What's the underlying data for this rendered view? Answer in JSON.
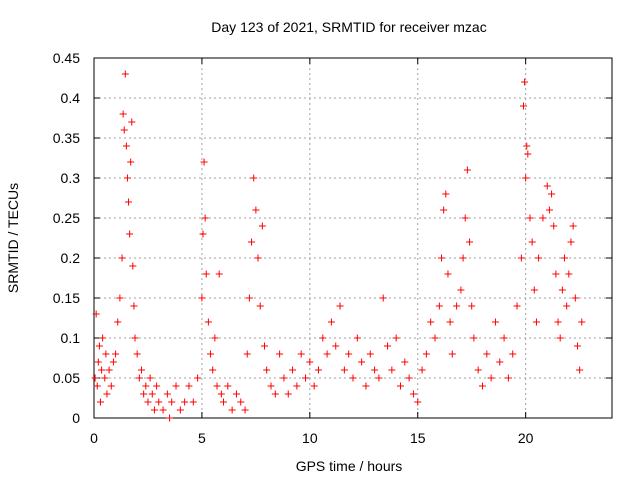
{
  "chart_data": {
    "type": "scatter",
    "title": "Day 123 of 2021, SRMTID for receiver mzac",
    "xlabel": "GPS time / hours",
    "ylabel": "SRMTID / TECUs",
    "xlim": [
      0,
      24
    ],
    "ylim": [
      0,
      0.45
    ],
    "xticks": [
      0,
      5,
      10,
      15,
      20
    ],
    "xtick_labels": [
      "0",
      "5",
      "10",
      "15",
      "20"
    ],
    "yticks": [
      0,
      0.05,
      0.1,
      0.15,
      0.2,
      0.25,
      0.3,
      0.35,
      0.4,
      0.45
    ],
    "ytick_labels": [
      "0",
      "0.05",
      "0.1",
      "0.15",
      "0.2",
      "0.25",
      "0.3",
      "0.35",
      "0.4",
      "0.45"
    ],
    "grid": true,
    "marker": "+",
    "marker_color": "#ff0000",
    "data_x_range": [
      0,
      22.6
    ],
    "series": [
      {
        "name": "SRMTID",
        "points": [
          [
            0.05,
            0.05
          ],
          [
            0.1,
            0.13
          ],
          [
            0.15,
            0.04
          ],
          [
            0.2,
            0.07
          ],
          [
            0.25,
            0.09
          ],
          [
            0.3,
            0.02
          ],
          [
            0.35,
            0.06
          ],
          [
            0.4,
            0.1
          ],
          [
            0.5,
            0.05
          ],
          [
            0.55,
            0.08
          ],
          [
            0.6,
            0.03
          ],
          [
            0.7,
            0.06
          ],
          [
            0.8,
            0.04
          ],
          [
            0.9,
            0.07
          ],
          [
            1.0,
            0.08
          ],
          [
            1.1,
            0.12
          ],
          [
            1.2,
            0.15
          ],
          [
            1.3,
            0.2
          ],
          [
            1.35,
            0.38
          ],
          [
            1.4,
            0.36
          ],
          [
            1.45,
            0.43
          ],
          [
            1.5,
            0.34
          ],
          [
            1.55,
            0.3
          ],
          [
            1.6,
            0.27
          ],
          [
            1.65,
            0.23
          ],
          [
            1.7,
            0.32
          ],
          [
            1.75,
            0.37
          ],
          [
            1.8,
            0.19
          ],
          [
            1.85,
            0.14
          ],
          [
            1.9,
            0.1
          ],
          [
            2.0,
            0.08
          ],
          [
            2.1,
            0.05
          ],
          [
            2.2,
            0.06
          ],
          [
            2.3,
            0.03
          ],
          [
            2.4,
            0.04
          ],
          [
            2.5,
            0.02
          ],
          [
            2.6,
            0.05
          ],
          [
            2.7,
            0.03
          ],
          [
            2.8,
            0.01
          ],
          [
            2.9,
            0.04
          ],
          [
            3.0,
            0.02
          ],
          [
            3.2,
            0.01
          ],
          [
            3.4,
            0.03
          ],
          [
            3.5,
            0.0
          ],
          [
            3.6,
            0.02
          ],
          [
            3.8,
            0.04
          ],
          [
            4.0,
            0.01
          ],
          [
            4.2,
            0.02
          ],
          [
            4.4,
            0.04
          ],
          [
            4.6,
            0.02
          ],
          [
            4.8,
            0.05
          ],
          [
            5.0,
            0.15
          ],
          [
            5.05,
            0.23
          ],
          [
            5.1,
            0.32
          ],
          [
            5.15,
            0.25
          ],
          [
            5.2,
            0.18
          ],
          [
            5.3,
            0.12
          ],
          [
            5.4,
            0.08
          ],
          [
            5.5,
            0.06
          ],
          [
            5.6,
            0.1
          ],
          [
            5.7,
            0.04
          ],
          [
            5.8,
            0.18
          ],
          [
            5.9,
            0.03
          ],
          [
            6.0,
            0.02
          ],
          [
            6.2,
            0.04
          ],
          [
            6.4,
            0.01
          ],
          [
            6.6,
            0.03
          ],
          [
            6.8,
            0.02
          ],
          [
            7.0,
            0.01
          ],
          [
            7.1,
            0.08
          ],
          [
            7.2,
            0.15
          ],
          [
            7.3,
            0.22
          ],
          [
            7.4,
            0.3
          ],
          [
            7.5,
            0.26
          ],
          [
            7.6,
            0.2
          ],
          [
            7.7,
            0.14
          ],
          [
            7.8,
            0.24
          ],
          [
            7.9,
            0.09
          ],
          [
            8.0,
            0.06
          ],
          [
            8.2,
            0.04
          ],
          [
            8.4,
            0.03
          ],
          [
            8.6,
            0.08
          ],
          [
            8.8,
            0.05
          ],
          [
            9.0,
            0.03
          ],
          [
            9.2,
            0.06
          ],
          [
            9.4,
            0.04
          ],
          [
            9.6,
            0.08
          ],
          [
            9.8,
            0.05
          ],
          [
            10.0,
            0.07
          ],
          [
            10.2,
            0.04
          ],
          [
            10.4,
            0.06
          ],
          [
            10.6,
            0.1
          ],
          [
            10.8,
            0.08
          ],
          [
            11.0,
            0.12
          ],
          [
            11.2,
            0.09
          ],
          [
            11.4,
            0.14
          ],
          [
            11.6,
            0.06
          ],
          [
            11.8,
            0.08
          ],
          [
            12.0,
            0.05
          ],
          [
            12.2,
            0.1
          ],
          [
            12.4,
            0.07
          ],
          [
            12.6,
            0.04
          ],
          [
            12.8,
            0.08
          ],
          [
            13.0,
            0.06
          ],
          [
            13.2,
            0.05
          ],
          [
            13.4,
            0.15
          ],
          [
            13.6,
            0.09
          ],
          [
            13.8,
            0.06
          ],
          [
            14.0,
            0.1
          ],
          [
            14.2,
            0.04
          ],
          [
            14.4,
            0.07
          ],
          [
            14.6,
            0.05
          ],
          [
            14.8,
            0.03
          ],
          [
            15.0,
            0.02
          ],
          [
            15.2,
            0.06
          ],
          [
            15.4,
            0.08
          ],
          [
            15.6,
            0.12
          ],
          [
            15.8,
            0.1
          ],
          [
            16.0,
            0.14
          ],
          [
            16.1,
            0.2
          ],
          [
            16.2,
            0.26
          ],
          [
            16.3,
            0.28
          ],
          [
            16.4,
            0.18
          ],
          [
            16.5,
            0.12
          ],
          [
            16.6,
            0.08
          ],
          [
            16.8,
            0.14
          ],
          [
            17.0,
            0.16
          ],
          [
            17.1,
            0.2
          ],
          [
            17.2,
            0.25
          ],
          [
            17.3,
            0.31
          ],
          [
            17.4,
            0.22
          ],
          [
            17.5,
            0.14
          ],
          [
            17.6,
            0.1
          ],
          [
            17.8,
            0.06
          ],
          [
            18.0,
            0.04
          ],
          [
            18.2,
            0.08
          ],
          [
            18.4,
            0.05
          ],
          [
            18.6,
            0.12
          ],
          [
            18.8,
            0.07
          ],
          [
            19.0,
            0.1
          ],
          [
            19.2,
            0.05
          ],
          [
            19.4,
            0.08
          ],
          [
            19.6,
            0.14
          ],
          [
            19.8,
            0.2
          ],
          [
            19.9,
            0.39
          ],
          [
            19.95,
            0.42
          ],
          [
            20.0,
            0.3
          ],
          [
            20.05,
            0.34
          ],
          [
            20.1,
            0.33
          ],
          [
            20.2,
            0.25
          ],
          [
            20.3,
            0.22
          ],
          [
            20.4,
            0.16
          ],
          [
            20.5,
            0.12
          ],
          [
            20.6,
            0.2
          ],
          [
            20.8,
            0.25
          ],
          [
            21.0,
            0.29
          ],
          [
            21.1,
            0.26
          ],
          [
            21.2,
            0.28
          ],
          [
            21.3,
            0.24
          ],
          [
            21.4,
            0.18
          ],
          [
            21.5,
            0.12
          ],
          [
            21.6,
            0.1
          ],
          [
            21.7,
            0.16
          ],
          [
            21.8,
            0.2
          ],
          [
            21.9,
            0.14
          ],
          [
            22.0,
            0.18
          ],
          [
            22.1,
            0.22
          ],
          [
            22.2,
            0.24
          ],
          [
            22.3,
            0.15
          ],
          [
            22.4,
            0.09
          ],
          [
            22.5,
            0.06
          ],
          [
            22.6,
            0.12
          ]
        ]
      }
    ]
  }
}
